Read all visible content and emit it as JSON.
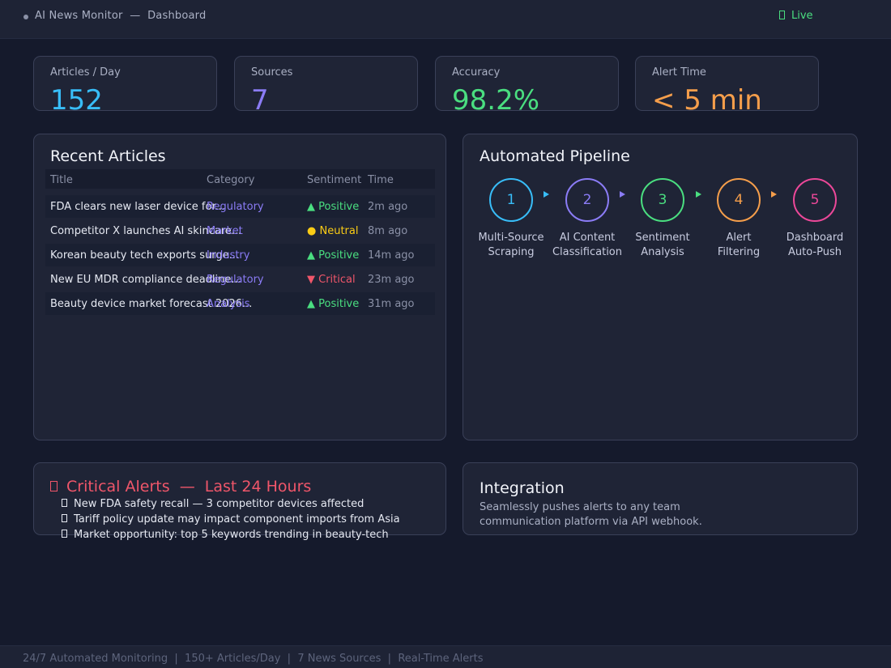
{
  "header": {
    "app_name": "AI News Monitor",
    "separator": "—",
    "page": "Dashboard",
    "live_label": "Live"
  },
  "stats": [
    {
      "label": "Articles / Day",
      "value": "152",
      "color": "#38bdf8"
    },
    {
      "label": "Sources",
      "value": "7",
      "color": "#8b7cf6"
    },
    {
      "label": "Accuracy",
      "value": "98.2%",
      "color": "#4ade80"
    },
    {
      "label": "Alert Time",
      "value": "< 5 min",
      "color": "#f59e4b"
    }
  ],
  "recent": {
    "title": "Recent Articles",
    "columns": [
      "Title",
      "Category",
      "Sentiment",
      "Time"
    ],
    "rows": [
      {
        "title": "FDA clears new laser device for...",
        "category": "Regulatory",
        "sentiment": "▲ Positive",
        "sentiment_color": "#4ade80",
        "time": "2m ago"
      },
      {
        "title": "Competitor X launches AI skincare...",
        "category": "Market",
        "sentiment": "● Neutral",
        "sentiment_color": "#facc15",
        "time": "8m ago"
      },
      {
        "title": "Korean beauty tech exports surge...",
        "category": "Industry",
        "sentiment": "▲ Positive",
        "sentiment_color": "#4ade80",
        "time": "14m ago"
      },
      {
        "title": "New EU MDR compliance deadline...",
        "category": "Regulatory",
        "sentiment": "▼ Critical",
        "sentiment_color": "#f0566a",
        "time": "23m ago"
      },
      {
        "title": "Beauty device market forecast 2026...",
        "category": "Analysis",
        "sentiment": "▲ Positive",
        "sentiment_color": "#4ade80",
        "time": "31m ago"
      }
    ]
  },
  "pipeline": {
    "title": "Automated Pipeline",
    "steps": [
      {
        "num": "1",
        "line1": "Multi-Source",
        "line2": "Scraping",
        "color": "#38bdf8"
      },
      {
        "num": "2",
        "line1": "AI Content",
        "line2": "Classification",
        "color": "#8b7cf6"
      },
      {
        "num": "3",
        "line1": "Sentiment",
        "line2": "Analysis",
        "color": "#4ade80"
      },
      {
        "num": "4",
        "line1": "Alert",
        "line2": "Filtering",
        "color": "#f59e4b"
      },
      {
        "num": "5",
        "line1": "Dashboard",
        "line2": "Auto-Push",
        "color": "#ec4899"
      }
    ]
  },
  "alerts": {
    "title": "Critical Alerts  —  Last 24 Hours",
    "items": [
      "New FDA safety recall — 3 competitor devices affected",
      "Tariff policy update may impact component imports from Asia",
      "Market opportunity: top 5 keywords trending in beauty-tech"
    ]
  },
  "integration": {
    "title": "Integration",
    "text": "Seamlessly pushes alerts to any team communication platform via API webhook."
  },
  "footer": {
    "text": "24/7 Automated Monitoring  |  150+ Articles/Day  |  7 News Sources  |  Real-Time Alerts"
  }
}
